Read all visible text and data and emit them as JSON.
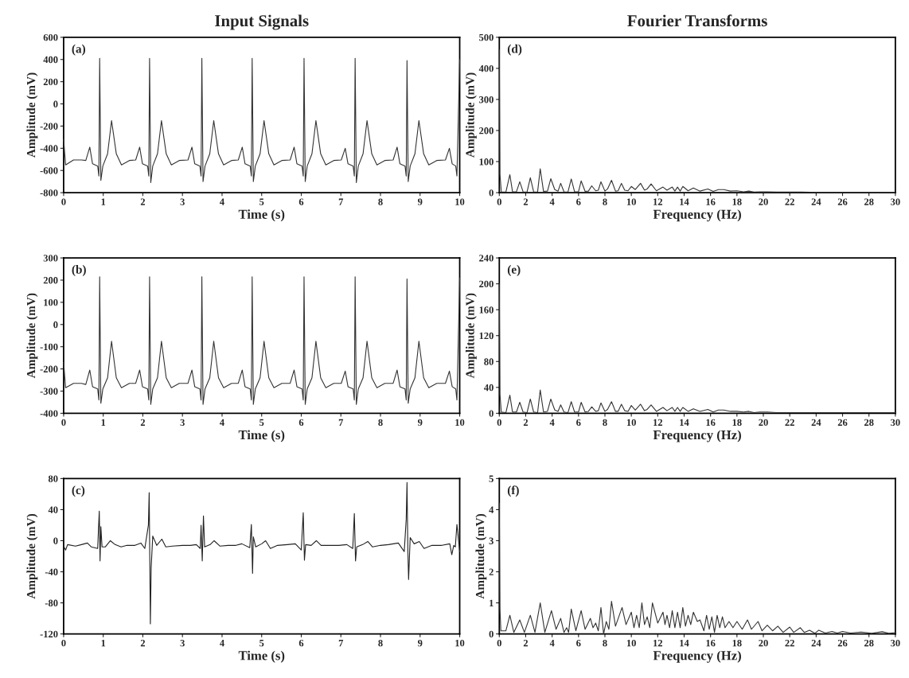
{
  "chart_data": [
    {
      "type": "line",
      "title": "Input Signals",
      "xlabel": "Time (s)",
      "ylabel": "Amplitude (mV)",
      "annotations": [
        "(a)"
      ],
      "xlim": [
        0,
        10
      ],
      "xticks": [
        0,
        1,
        2,
        3,
        4,
        5,
        6,
        7,
        8,
        9,
        10
      ],
      "ylim": [
        -800,
        600
      ],
      "yticks": [
        -800,
        -600,
        -400,
        -200,
        0,
        200,
        400,
        600
      ],
      "line_style": "solid",
      "series": [
        {
          "color": "#333333",
          "x": [
            0,
            0.05,
            0.25,
            0.45,
            0.56,
            0.66,
            0.73,
            0.86,
            0.89,
            0.91,
            0.94,
            0.99,
            1.11,
            1.21,
            1.33,
            1.46,
            1.66,
            1.82,
            1.92,
            1.99,
            2.12,
            2.15,
            2.17,
            2.2,
            2.25,
            2.37,
            2.47,
            2.59,
            2.72,
            2.92,
            3.14,
            3.24,
            3.31,
            3.44,
            3.47,
            3.49,
            3.52,
            3.57,
            3.69,
            3.79,
            3.91,
            4.04,
            4.24,
            4.41,
            4.51,
            4.58,
            4.71,
            4.74,
            4.76,
            4.79,
            4.84,
            4.96,
            5.06,
            5.18,
            5.31,
            5.51,
            5.72,
            5.82,
            5.89,
            6.02,
            6.05,
            6.07,
            6.1,
            6.15,
            6.27,
            6.37,
            6.49,
            6.62,
            6.82,
            7.01,
            7.11,
            7.18,
            7.31,
            7.34,
            7.36,
            7.39,
            7.44,
            7.56,
            7.66,
            7.78,
            7.91,
            8.11,
            8.32,
            8.42,
            8.49,
            8.62,
            8.65,
            8.67,
            8.7,
            8.75,
            8.87,
            8.97,
            9.09,
            9.22,
            9.42,
            9.64,
            9.74,
            9.81,
            9.9,
            9.93,
            10
          ],
          "values": [
            -320,
            -550,
            -505,
            -505,
            -510,
            -390,
            -540,
            -560,
            -650,
            410,
            -690,
            -560,
            -450,
            -150,
            -450,
            -550,
            -510,
            -505,
            -390,
            -540,
            -560,
            -650,
            410,
            -710,
            -560,
            -450,
            -150,
            -450,
            -550,
            -510,
            -505,
            -390,
            -540,
            -560,
            -650,
            410,
            -700,
            -560,
            -450,
            -150,
            -450,
            -550,
            -510,
            -505,
            -390,
            -540,
            -560,
            -650,
            410,
            -700,
            -560,
            -450,
            -150,
            -450,
            -550,
            -510,
            -505,
            -390,
            -540,
            -560,
            -650,
            410,
            -700,
            -560,
            -450,
            -150,
            -450,
            -550,
            -510,
            -505,
            -400,
            -540,
            -560,
            -650,
            410,
            -710,
            -560,
            -450,
            -150,
            -450,
            -550,
            -510,
            -505,
            -390,
            -540,
            -560,
            -650,
            390,
            -700,
            -560,
            -450,
            -150,
            -450,
            -550,
            -510,
            -505,
            -400,
            -540,
            -560,
            -650,
            400
          ]
        }
      ]
    },
    {
      "type": "line",
      "title": "Fourier Transforms",
      "xlabel": "Frequency (Hz)",
      "ylabel": "Amplitude (mV)",
      "annotations": [
        "(d)"
      ],
      "xlim": [
        0,
        30
      ],
      "xticks": [
        0,
        2,
        4,
        6,
        8,
        10,
        12,
        14,
        16,
        18,
        20,
        22,
        24,
        26,
        28,
        30
      ],
      "ylim": [
        0,
        500
      ],
      "yticks": [
        0,
        100,
        200,
        300,
        400,
        500
      ],
      "line_style": "solid",
      "series": [
        {
          "color": "#333333",
          "x": [
            0,
            0.05,
            0.15,
            0.5,
            0.8,
            1.0,
            1.3,
            1.55,
            1.8,
            2.1,
            2.35,
            2.6,
            2.9,
            3.1,
            3.35,
            3.65,
            3.9,
            4.2,
            4.45,
            4.65,
            4.9,
            5.2,
            5.45,
            5.7,
            6.0,
            6.2,
            6.5,
            6.75,
            7.0,
            7.3,
            7.5,
            7.7,
            8.0,
            8.2,
            8.5,
            8.8,
            9.0,
            9.25,
            9.5,
            9.75,
            10.0,
            10.3,
            10.7,
            11.0,
            11.2,
            11.5,
            11.9,
            12.4,
            12.7,
            13.1,
            13.3,
            13.5,
            13.7,
            13.9,
            14.3,
            14.7,
            15.2,
            15.8,
            16.2,
            16.6,
            17.0,
            17.5,
            18.0,
            18.5,
            18.9,
            19.3,
            19.7,
            20.3,
            21,
            22,
            22.9,
            24,
            25,
            26,
            27.6,
            29,
            30
          ],
          "values": [
            460,
            60,
            3,
            2,
            58,
            3,
            3,
            35,
            3,
            2,
            48,
            3,
            2,
            77,
            4,
            5,
            45,
            10,
            5,
            30,
            3,
            2,
            44,
            3,
            3,
            38,
            4,
            5,
            22,
            6,
            8,
            35,
            5,
            12,
            40,
            5,
            6,
            30,
            8,
            6,
            20,
            10,
            30,
            8,
            12,
            28,
            6,
            18,
            8,
            18,
            5,
            18,
            5,
            20,
            6,
            15,
            5,
            12,
            4,
            10,
            10,
            5,
            6,
            3,
            5,
            2,
            3,
            3,
            2,
            2,
            2,
            1,
            1,
            1,
            1,
            1,
            1
          ]
        }
      ]
    },
    {
      "type": "line",
      "xlabel": "Time (s)",
      "ylabel": "Amplitude (mV)",
      "annotations": [
        "(b)"
      ],
      "xlim": [
        0,
        10
      ],
      "xticks": [
        0,
        1,
        2,
        3,
        4,
        5,
        6,
        7,
        8,
        9,
        10
      ],
      "ylim": [
        -400,
        300
      ],
      "yticks": [
        -400,
        -300,
        -200,
        -100,
        0,
        100,
        200,
        300
      ],
      "line_style": "solid",
      "series": [
        {
          "color": "#333333",
          "x": [
            0,
            0.05,
            0.25,
            0.45,
            0.56,
            0.66,
            0.73,
            0.86,
            0.89,
            0.91,
            0.94,
            0.99,
            1.11,
            1.21,
            1.33,
            1.46,
            1.66,
            1.82,
            1.92,
            1.99,
            2.12,
            2.15,
            2.17,
            2.2,
            2.25,
            2.37,
            2.47,
            2.59,
            2.72,
            2.92,
            3.14,
            3.24,
            3.31,
            3.44,
            3.47,
            3.49,
            3.52,
            3.57,
            3.69,
            3.79,
            3.91,
            4.04,
            4.24,
            4.41,
            4.51,
            4.58,
            4.71,
            4.74,
            4.76,
            4.79,
            4.84,
            4.96,
            5.06,
            5.18,
            5.31,
            5.51,
            5.72,
            5.82,
            5.89,
            6.02,
            6.05,
            6.07,
            6.1,
            6.15,
            6.27,
            6.37,
            6.49,
            6.62,
            6.82,
            7.01,
            7.11,
            7.18,
            7.31,
            7.34,
            7.36,
            7.39,
            7.44,
            7.56,
            7.66,
            7.78,
            7.91,
            8.11,
            8.32,
            8.42,
            8.49,
            8.62,
            8.65,
            8.67,
            8.7,
            8.75,
            8.87,
            8.97,
            9.09,
            9.22,
            9.42,
            9.64,
            9.74,
            9.81,
            9.9,
            9.93,
            10
          ],
          "values": [
            -170,
            -285,
            -265,
            -265,
            -270,
            -205,
            -280,
            -290,
            -340,
            215,
            -355,
            -290,
            -240,
            -75,
            -240,
            -285,
            -265,
            -265,
            -205,
            -280,
            -290,
            -340,
            215,
            -360,
            -290,
            -240,
            -75,
            -240,
            -285,
            -265,
            -265,
            -205,
            -280,
            -290,
            -340,
            215,
            -360,
            -290,
            -240,
            -75,
            -240,
            -285,
            -265,
            -265,
            -205,
            -280,
            -290,
            -340,
            215,
            -360,
            -290,
            -240,
            -75,
            -240,
            -285,
            -265,
            -265,
            -205,
            -280,
            -290,
            -340,
            215,
            -360,
            -290,
            -240,
            -75,
            -240,
            -285,
            -265,
            -265,
            -210,
            -280,
            -290,
            -340,
            215,
            -360,
            -290,
            -240,
            -75,
            -240,
            -285,
            -265,
            -265,
            -205,
            -280,
            -290,
            -340,
            205,
            -355,
            -290,
            -240,
            -75,
            -240,
            -285,
            -265,
            -265,
            -210,
            -280,
            -290,
            -340,
            210
          ]
        }
      ]
    },
    {
      "type": "line",
      "xlabel": "Frequency (Hz)",
      "ylabel": "Amplitude (mV)",
      "annotations": [
        "(e)"
      ],
      "xlim": [
        0,
        30
      ],
      "xticks": [
        0,
        2,
        4,
        6,
        8,
        10,
        12,
        14,
        16,
        18,
        20,
        22,
        24,
        26,
        28,
        30
      ],
      "ylim": [
        0,
        240
      ],
      "yticks": [
        0,
        40,
        80,
        120,
        160,
        200,
        240
      ],
      "line_style": "solid",
      "series": [
        {
          "color": "#333333",
          "x": [
            0,
            0.05,
            0.15,
            0.5,
            0.8,
            1.0,
            1.3,
            1.55,
            1.8,
            2.1,
            2.35,
            2.6,
            2.9,
            3.1,
            3.35,
            3.65,
            3.9,
            4.2,
            4.45,
            4.65,
            4.9,
            5.2,
            5.45,
            5.7,
            6.0,
            6.2,
            6.5,
            6.75,
            7.0,
            7.3,
            7.5,
            7.7,
            8.0,
            8.2,
            8.5,
            8.8,
            9.0,
            9.25,
            9.5,
            9.75,
            10.0,
            10.3,
            10.7,
            11.0,
            11.2,
            11.5,
            11.9,
            12.4,
            12.7,
            13.1,
            13.3,
            13.5,
            13.7,
            13.9,
            14.3,
            14.7,
            15.2,
            15.8,
            16.2,
            16.6,
            17.0,
            17.5,
            18.0,
            18.5,
            18.9,
            19.3,
            19.7,
            20.3,
            21,
            22,
            22.9,
            24,
            25,
            26,
            27.6,
            29,
            30
          ],
          "values": [
            200,
            30,
            2,
            1,
            28,
            2,
            2,
            17,
            2,
            1,
            22,
            2,
            1,
            36,
            2,
            3,
            22,
            5,
            3,
            13,
            2,
            1,
            18,
            2,
            2,
            17,
            2,
            3,
            10,
            3,
            4,
            16,
            3,
            6,
            18,
            3,
            3,
            14,
            4,
            3,
            12,
            5,
            14,
            4,
            6,
            13,
            3,
            9,
            4,
            9,
            3,
            9,
            3,
            9,
            3,
            7,
            3,
            6,
            2,
            5,
            5,
            3,
            3,
            2,
            3,
            1,
            2,
            2,
            1,
            1,
            1,
            1,
            1,
            1,
            1,
            1,
            1
          ]
        }
      ]
    },
    {
      "type": "line",
      "xlabel": "Time (s)",
      "ylabel": "Amplitude (mV)",
      "annotations": [
        "(c)"
      ],
      "xlim": [
        0,
        10
      ],
      "xticks": [
        0,
        1,
        2,
        3,
        4,
        5,
        6,
        7,
        8,
        9,
        10
      ],
      "ylim": [
        -120,
        80
      ],
      "yticks": [
        -120,
        -80,
        -40,
        0,
        40,
        80
      ],
      "line_style": "solid",
      "series": [
        {
          "color": "#222222",
          "x": [
            0,
            0.05,
            0.1,
            0.3,
            0.45,
            0.6,
            0.7,
            0.86,
            0.88,
            0.9,
            0.92,
            0.94,
            0.97,
            1.05,
            1.18,
            1.3,
            1.45,
            1.6,
            1.8,
            1.95,
            2.05,
            2.14,
            2.16,
            2.19,
            2.21,
            2.25,
            2.35,
            2.48,
            2.58,
            2.75,
            3.0,
            3.2,
            3.35,
            3.45,
            3.47,
            3.5,
            3.53,
            3.56,
            3.7,
            3.8,
            3.95,
            4.15,
            4.35,
            4.5,
            4.7,
            4.74,
            4.77,
            4.79,
            4.85,
            5.0,
            5.1,
            5.22,
            5.4,
            5.65,
            5.85,
            6.0,
            6.05,
            6.08,
            6.11,
            6.25,
            6.38,
            6.5,
            6.7,
            6.95,
            7.15,
            7.3,
            7.34,
            7.37,
            7.4,
            7.55,
            7.68,
            7.8,
            8.0,
            8.2,
            8.45,
            8.6,
            8.65,
            8.67,
            8.69,
            8.71,
            8.75,
            8.85,
            8.98,
            9.1,
            9.3,
            9.55,
            9.75,
            9.8,
            9.85,
            9.89,
            9.93,
            10
          ],
          "values": [
            -7,
            -12,
            -5,
            -7,
            -5,
            -3,
            -8,
            -10,
            15,
            38,
            -26,
            18,
            -8,
            -8,
            0,
            -5,
            -8,
            -6,
            -6,
            -3,
            -10,
            20,
            62,
            -107,
            -35,
            6,
            -6,
            2,
            -8,
            -7,
            -6,
            -6,
            -5,
            -10,
            20,
            -26,
            32,
            -8,
            -5,
            0,
            -7,
            -6,
            -6,
            -4,
            -9,
            21,
            -42,
            5,
            -8,
            -4,
            0,
            -10,
            -6,
            -5,
            -4,
            -12,
            36,
            -25,
            -5,
            -6,
            0,
            -6,
            -6,
            -6,
            -5,
            -10,
            35,
            -26,
            -8,
            -5,
            -1,
            -8,
            -6,
            -5,
            -3,
            -14,
            28,
            75,
            -10,
            -50,
            4,
            -4,
            -1,
            -10,
            -6,
            -6,
            -4,
            -18,
            -6,
            -8,
            21,
            -14
          ]
        }
      ]
    },
    {
      "type": "line",
      "xlabel": "Frequency (Hz)",
      "ylabel": "Amplitude (mV)",
      "annotations": [
        "(f)"
      ],
      "xlim": [
        0,
        30
      ],
      "xticks": [
        0,
        2,
        4,
        6,
        8,
        10,
        12,
        14,
        16,
        18,
        20,
        22,
        24,
        26,
        28,
        30
      ],
      "ylim": [
        0,
        5
      ],
      "yticks": [
        0,
        1,
        2,
        3,
        4,
        5
      ],
      "line_style": "solid",
      "series": [
        {
          "color": "#333333",
          "x": [
            0,
            0.05,
            0.12,
            0.5,
            0.8,
            1.1,
            1.55,
            1.9,
            2.35,
            2.7,
            3.1,
            3.45,
            3.95,
            4.3,
            4.65,
            4.9,
            5.1,
            5.25,
            5.45,
            5.8,
            6.2,
            6.5,
            6.9,
            7.1,
            7.3,
            7.5,
            7.7,
            7.9,
            8.1,
            8.3,
            8.5,
            8.8,
            9.3,
            9.6,
            10.0,
            10.2,
            10.4,
            10.6,
            10.8,
            11.0,
            11.2,
            11.4,
            11.6,
            12.0,
            12.4,
            12.55,
            12.7,
            12.9,
            13.1,
            13.3,
            13.5,
            13.7,
            13.9,
            14.1,
            14.3,
            14.5,
            14.7,
            15.0,
            15.2,
            15.5,
            15.7,
            15.9,
            16.1,
            16.3,
            16.5,
            16.7,
            16.9,
            17.1,
            17.4,
            17.7,
            18.0,
            18.4,
            18.8,
            19.1,
            19.6,
            19.9,
            20.3,
            20.7,
            21.1,
            21.5,
            22.0,
            22.3,
            22.8,
            23.1,
            23.5,
            23.9,
            24.2,
            24.7,
            25.2,
            25.6,
            26.0,
            26.6,
            27.4,
            28.2,
            29.0,
            29.5,
            30
          ],
          "values": [
            4.2,
            0.8,
            0.1,
            0.1,
            0.6,
            0.05,
            0.45,
            0.05,
            0.6,
            0.05,
            1.0,
            0.05,
            0.75,
            0.15,
            0.5,
            0.05,
            0.2,
            0.05,
            0.8,
            0.1,
            0.75,
            0.15,
            0.5,
            0.2,
            0.35,
            0.1,
            0.85,
            0.0,
            0.4,
            0.15,
            1.05,
            0.25,
            0.85,
            0.3,
            0.7,
            0.2,
            0.6,
            0.2,
            1.0,
            0.3,
            0.55,
            0.2,
            1.0,
            0.35,
            0.7,
            0.3,
            0.6,
            0.2,
            0.75,
            0.2,
            0.7,
            0.2,
            0.85,
            0.25,
            0.6,
            0.3,
            0.7,
            0.4,
            0.45,
            0.1,
            0.6,
            0.15,
            0.55,
            0.05,
            0.6,
            0.2,
            0.55,
            0.2,
            0.4,
            0.2,
            0.4,
            0.15,
            0.45,
            0.15,
            0.4,
            0.1,
            0.28,
            0.1,
            0.25,
            0.05,
            0.22,
            0.05,
            0.2,
            0.05,
            0.12,
            0.02,
            0.12,
            0.03,
            0.08,
            0.03,
            0.08,
            0.03,
            0.06,
            0.02,
            0.07,
            0.02,
            0.04
          ]
        }
      ]
    }
  ]
}
